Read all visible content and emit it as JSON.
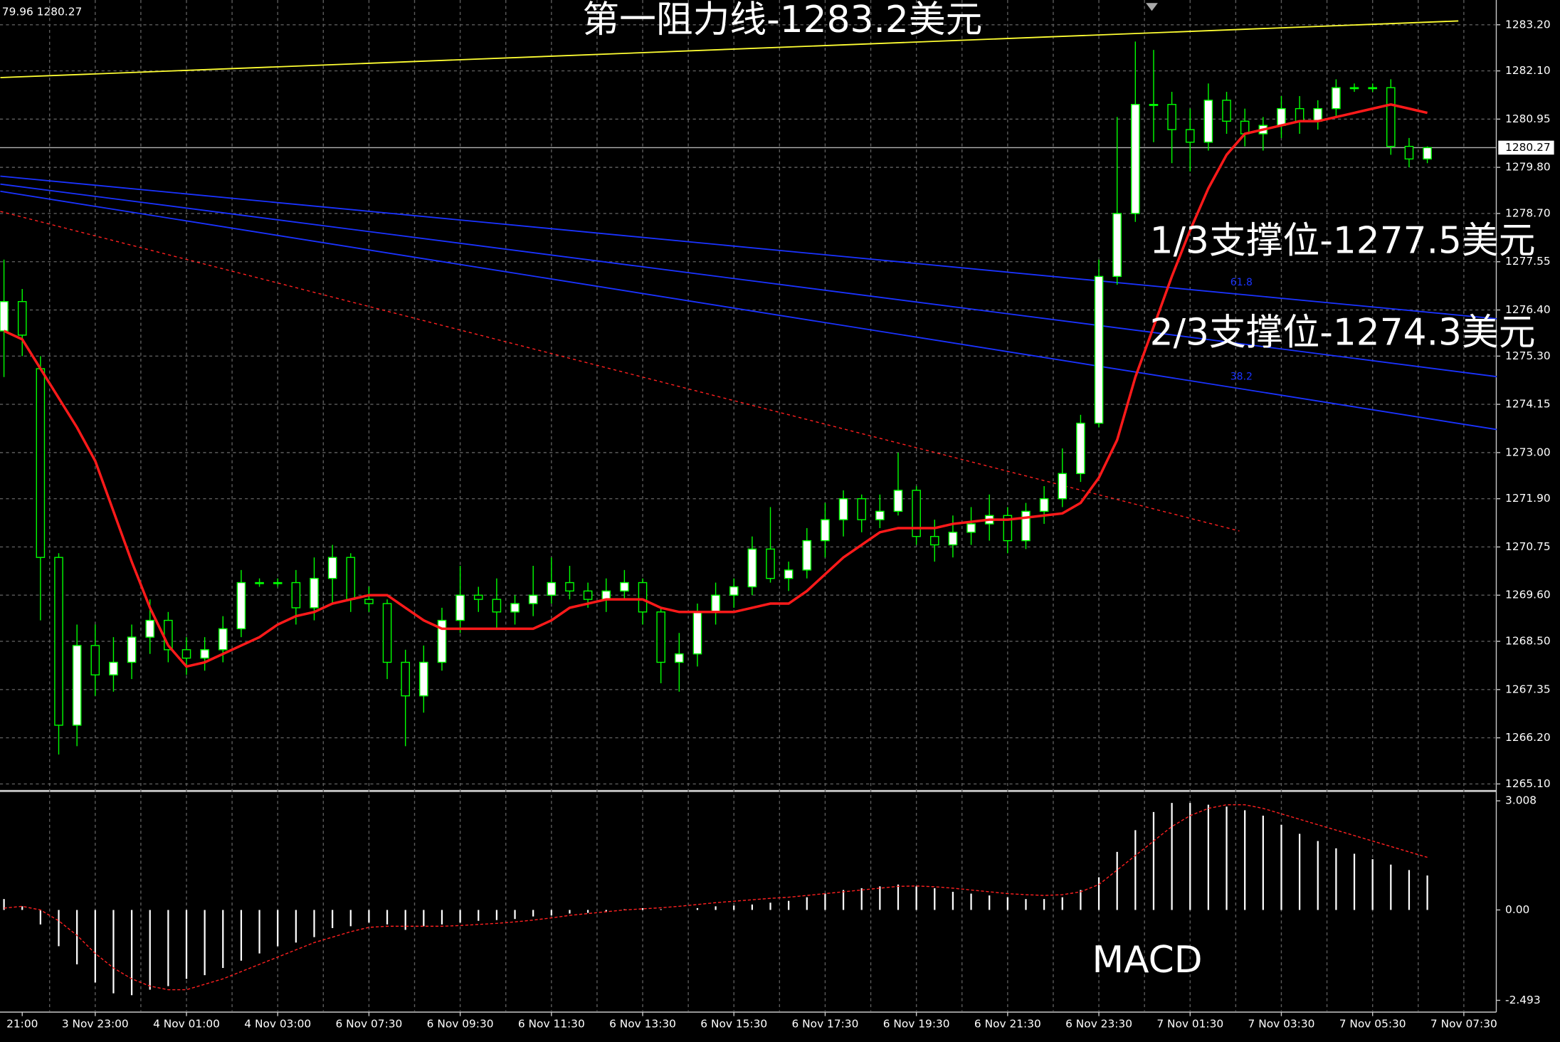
{
  "chart_data": [
    {
      "type": "candlestick",
      "info": "79.96 1280.27",
      "categories": [
        null,
        "21:00",
        null,
        null,
        null,
        "3 Nov 23:00",
        null,
        null,
        null,
        null,
        "4 Nov 01:00",
        null,
        null,
        null,
        null,
        "4 Nov 03:00",
        null,
        null,
        null,
        null,
        "6 Nov 07:30",
        null,
        null,
        null,
        null,
        "6 Nov 09:30",
        null,
        null,
        null,
        null,
        "6 Nov 11:30",
        null,
        null,
        null,
        null,
        "6 Nov 13:30",
        null,
        null,
        null,
        null,
        "6 Nov 15:30",
        null,
        null,
        null,
        null,
        "6 Nov 17:30",
        null,
        null,
        null,
        null,
        "6 Nov 19:30",
        null,
        null,
        null,
        null,
        "6 Nov 21:30",
        null,
        null,
        null,
        null,
        "6 Nov 23:30",
        null,
        null,
        null,
        null,
        "7 Nov 01:30",
        null,
        null,
        null,
        null,
        "7 Nov 03:30",
        null,
        null,
        null,
        null,
        "7 Nov 05:30",
        null,
        null,
        null,
        null,
        "7 Nov 07:30"
      ],
      "open": [
        1275.9,
        1276.6,
        1275.0,
        1270.5,
        1266.5,
        1268.4,
        1267.7,
        1268.0,
        1268.6,
        1269.0,
        1268.3,
        1268.1,
        1268.3,
        1268.8,
        1269.9,
        1269.9,
        1269.9,
        1269.3,
        1270.0,
        1270.5,
        1269.5,
        1269.4,
        1268.0,
        1267.2,
        1268.0,
        1269.0,
        1269.6,
        1269.5,
        1269.2,
        1269.4,
        1269.6,
        1269.9,
        1269.7,
        1269.5,
        1269.7,
        1269.9,
        1269.2,
        1268.0,
        1268.2,
        1269.2,
        1269.6,
        1269.8,
        1270.7,
        1270.0,
        1270.2,
        1270.9,
        1271.4,
        1271.9,
        1271.4,
        1271.6,
        1272.1,
        1271.0,
        1270.8,
        1271.1,
        1271.3,
        1271.5,
        1270.9,
        1271.6,
        1271.9,
        1272.5,
        1273.7,
        1277.2,
        1278.7,
        1281.3,
        1281.3,
        1280.7,
        1280.4,
        1281.4,
        1280.9,
        1280.6,
        1280.8,
        1281.2,
        1280.9,
        1281.2,
        1281.7,
        1281.7,
        1281.7,
        1280.3,
        1280.0,
        null,
        null
      ],
      "high": [
        1277.6,
        1276.9,
        1275.3,
        1270.6,
        1268.9,
        1268.9,
        1268.6,
        1268.9,
        1269.5,
        1269.2,
        1268.6,
        1268.6,
        1269.1,
        1270.2,
        1270.0,
        1270.0,
        1270.2,
        1270.5,
        1270.8,
        1270.6,
        1269.8,
        1269.5,
        1268.3,
        1268.4,
        1269.3,
        1270.3,
        1269.8,
        1270.0,
        1269.6,
        1270.3,
        1270.5,
        1270.3,
        1269.9,
        1270.0,
        1270.2,
        1270.0,
        1269.3,
        1268.7,
        1269.4,
        1269.9,
        1270.0,
        1271.0,
        1271.7,
        1270.4,
        1271.2,
        1271.8,
        1272.1,
        1272.0,
        1272.0,
        1273.0,
        1272.2,
        1271.4,
        1271.5,
        1271.7,
        1272.0,
        1271.7,
        1271.8,
        1272.2,
        1273.1,
        1273.9,
        1277.6,
        1281.0,
        1282.8,
        1282.6,
        1281.6,
        1281.2,
        1281.8,
        1281.6,
        1281.2,
        1281.0,
        1281.5,
        1281.5,
        1281.4,
        1281.9,
        1281.8,
        1281.8,
        1281.9,
        1280.5,
        1280.3,
        null,
        null
      ],
      "low": [
        1274.8,
        1275.3,
        1269.0,
        1265.8,
        1266.0,
        1267.2,
        1267.3,
        1267.6,
        1268.2,
        1268.0,
        1267.7,
        1267.8,
        1268.0,
        1268.6,
        1269.8,
        1269.8,
        1268.9,
        1269.0,
        1269.4,
        1269.2,
        1269.2,
        1267.6,
        1266.0,
        1266.8,
        1267.8,
        1268.7,
        1269.2,
        1268.8,
        1268.9,
        1269.1,
        1269.4,
        1269.5,
        1269.3,
        1269.2,
        1269.5,
        1268.9,
        1267.5,
        1267.3,
        1267.9,
        1268.9,
        1269.3,
        1269.6,
        1269.9,
        1269.7,
        1270.0,
        1270.5,
        1271.0,
        1271.1,
        1271.2,
        1271.5,
        1270.8,
        1270.4,
        1270.5,
        1270.8,
        1270.9,
        1270.6,
        1270.7,
        1271.3,
        1271.7,
        1272.3,
        1273.6,
        1277.0,
        1278.5,
        1280.4,
        1279.9,
        1279.7,
        1280.2,
        1280.6,
        1280.3,
        1280.2,
        1280.5,
        1280.6,
        1280.7,
        1281.0,
        1281.6,
        1281.6,
        1280.1,
        1279.8,
        1279.9,
        null,
        null
      ],
      "close": [
        1276.6,
        1275.8,
        1270.5,
        1266.5,
        1268.4,
        1267.7,
        1268.0,
        1268.6,
        1269.0,
        1268.3,
        1268.1,
        1268.3,
        1268.8,
        1269.9,
        1269.9,
        1269.9,
        1269.3,
        1270.0,
        1270.5,
        1269.5,
        1269.4,
        1268.0,
        1267.2,
        1268.0,
        1269.0,
        1269.6,
        1269.5,
        1269.2,
        1269.4,
        1269.6,
        1269.9,
        1269.7,
        1269.5,
        1269.7,
        1269.9,
        1269.2,
        1268.0,
        1268.2,
        1269.2,
        1269.6,
        1269.8,
        1270.7,
        1270.0,
        1270.2,
        1270.9,
        1271.4,
        1271.9,
        1271.4,
        1271.6,
        1272.1,
        1271.0,
        1270.8,
        1271.1,
        1271.3,
        1271.5,
        1270.9,
        1271.6,
        1271.9,
        1272.5,
        1273.7,
        1277.2,
        1278.7,
        1281.3,
        1281.3,
        1280.7,
        1280.4,
        1281.4,
        1280.9,
        1280.6,
        1280.8,
        1281.2,
        1280.9,
        1281.2,
        1281.7,
        1281.7,
        1281.7,
        1280.3,
        1280.0,
        1280.27,
        null,
        null
      ],
      "ma": {
        "color": "#ff1a1a",
        "values": [
          1275.9,
          1275.7,
          1275.0,
          1274.3,
          1273.6,
          1272.8,
          1271.6,
          1270.4,
          1269.3,
          1268.4,
          1267.9,
          1268.0,
          1268.2,
          1268.4,
          1268.6,
          1268.9,
          1269.1,
          1269.2,
          1269.4,
          1269.5,
          1269.6,
          1269.6,
          1269.3,
          1269.0,
          1268.8,
          1268.8,
          1268.8,
          1268.8,
          1268.8,
          1268.8,
          1269.0,
          1269.3,
          1269.4,
          1269.5,
          1269.5,
          1269.5,
          1269.3,
          1269.2,
          1269.2,
          1269.2,
          1269.2,
          1269.3,
          1269.4,
          1269.4,
          1269.7,
          1270.1,
          1270.5,
          1270.8,
          1271.1,
          1271.2,
          1271.2,
          1271.2,
          1271.3,
          1271.35,
          1271.4,
          1271.4,
          1271.45,
          1271.5,
          1271.55,
          1271.8,
          1272.4,
          1273.3,
          1274.8,
          1276.0,
          1277.2,
          1278.3,
          1279.3,
          1280.1,
          1280.6,
          1280.7,
          1280.8,
          1280.9,
          1280.9,
          1281.0,
          1281.1,
          1281.2,
          1281.3,
          1281.2,
          1281.1,
          null,
          null
        ]
      },
      "lines": [
        {
          "color": "#ffff33",
          "style": "solid",
          "x": [
            -0.2,
            79.7
          ],
          "y": [
            1281.94,
            1283.29
          ]
        },
        {
          "color": "#1a33ff",
          "style": "solid",
          "x": [
            -0.2,
            81.8
          ],
          "y": [
            1279.59,
            1276.19
          ],
          "label": "61.8"
        },
        {
          "color": "#1a33ff",
          "style": "solid",
          "x": [
            -0.2,
            81.8
          ],
          "y": [
            1279.4,
            1274.81
          ]
        },
        {
          "color": "#1a33ff",
          "style": "solid",
          "x": [
            -0.2,
            81.8
          ],
          "y": [
            1279.23,
            1273.55
          ],
          "label": "38.2"
        },
        {
          "color": "#ff2020",
          "style": "dotted",
          "x": [
            -0.2,
            67.7
          ],
          "y": [
            1278.75,
            1271.13
          ]
        }
      ],
      "annotations": [
        "第一阻力线-1283.2美元",
        "1/3支撑位-1277.5美元",
        "2/3支撑位-1274.3美元"
      ],
      "last_price": {
        "value": 1280.27,
        "label": "1280.27"
      },
      "ylim": [
        1264.98,
        1283.79
      ],
      "yticks": [
        {
          "value": 1283.2,
          "label": "1283.20"
        },
        {
          "value": 1282.1,
          "label": "1282.10"
        },
        {
          "value": 1280.95,
          "label": "1280.95"
        },
        {
          "value": 1279.8,
          "label": "1279.80"
        },
        {
          "value": 1278.7,
          "label": "1278.70"
        },
        {
          "value": 1277.55,
          "label": "1277.55"
        },
        {
          "value": 1276.4,
          "label": "1276.40"
        },
        {
          "value": 1275.3,
          "label": "1275.30"
        },
        {
          "value": 1274.15,
          "label": "1274.15"
        },
        {
          "value": 1273,
          "label": "1273.00"
        },
        {
          "value": 1271.9,
          "label": "1271.90"
        },
        {
          "value": 1270.75,
          "label": "1270.75"
        },
        {
          "value": 1269.6,
          "label": "1269.60"
        },
        {
          "value": 1268.5,
          "label": "1268.50"
        },
        {
          "value": 1267.35,
          "label": "1267.35"
        },
        {
          "value": 1266.2,
          "label": "1266.20"
        },
        {
          "value": 1265.1,
          "label": "1265.10"
        }
      ],
      "grid": true,
      "up_color": "#ffffff",
      "down_color": "#000000",
      "wick_color": "#00ff00"
    },
    {
      "type": "macd",
      "title": "MACD",
      "histogram": {
        "color": "#ffffff",
        "values": [
          0.3,
          0.1,
          -0.4,
          -1.0,
          -1.5,
          -2.0,
          -2.3,
          -2.35,
          -2.2,
          -2.1,
          -1.9,
          -1.8,
          -1.6,
          -1.4,
          -1.2,
          -1.0,
          -0.9,
          -0.75,
          -0.5,
          -0.45,
          -0.35,
          -0.4,
          -0.55,
          -0.45,
          -0.4,
          -0.35,
          -0.3,
          -0.28,
          -0.25,
          -0.18,
          -0.15,
          -0.1,
          -0.08,
          -0.05,
          0.02,
          0.05,
          0.02,
          0.0,
          0.05,
          0.1,
          0.12,
          0.15,
          0.2,
          0.25,
          0.35,
          0.45,
          0.55,
          0.6,
          0.65,
          0.7,
          0.65,
          0.6,
          0.5,
          0.45,
          0.4,
          0.35,
          0.3,
          0.3,
          0.35,
          0.55,
          0.9,
          1.6,
          2.2,
          2.7,
          2.95,
          2.95,
          2.9,
          2.85,
          2.75,
          2.6,
          2.35,
          2.1,
          1.9,
          1.7,
          1.55,
          1.4,
          1.25,
          1.1,
          0.95,
          null,
          null
        ]
      },
      "signal": {
        "color": "#ff2020",
        "values": [
          0.05,
          0.1,
          0.0,
          -0.3,
          -0.7,
          -1.2,
          -1.6,
          -1.9,
          -2.1,
          -2.2,
          -2.2,
          -2.05,
          -1.9,
          -1.7,
          -1.5,
          -1.3,
          -1.1,
          -0.9,
          -0.75,
          -0.6,
          -0.48,
          -0.45,
          -0.45,
          -0.45,
          -0.45,
          -0.43,
          -0.4,
          -0.37,
          -0.33,
          -0.28,
          -0.22,
          -0.15,
          -0.1,
          -0.05,
          0.0,
          0.03,
          0.06,
          0.1,
          0.15,
          0.2,
          0.24,
          0.28,
          0.32,
          0.35,
          0.4,
          0.45,
          0.5,
          0.55,
          0.6,
          0.65,
          0.66,
          0.64,
          0.6,
          0.55,
          0.5,
          0.45,
          0.42,
          0.4,
          0.42,
          0.5,
          0.7,
          1.1,
          1.5,
          1.9,
          2.3,
          2.6,
          2.8,
          2.9,
          2.9,
          2.8,
          2.65,
          2.5,
          2.35,
          2.2,
          2.05,
          1.9,
          1.75,
          1.6,
          1.45,
          null,
          null
        ]
      },
      "ylim": [
        -2.79,
        3.198
      ],
      "yticks": [
        {
          "value": 3.008,
          "label": "3.008"
        },
        {
          "value": 0,
          "label": "0.00"
        },
        {
          "value": -2.493,
          "label": "-2.493"
        }
      ]
    }
  ]
}
